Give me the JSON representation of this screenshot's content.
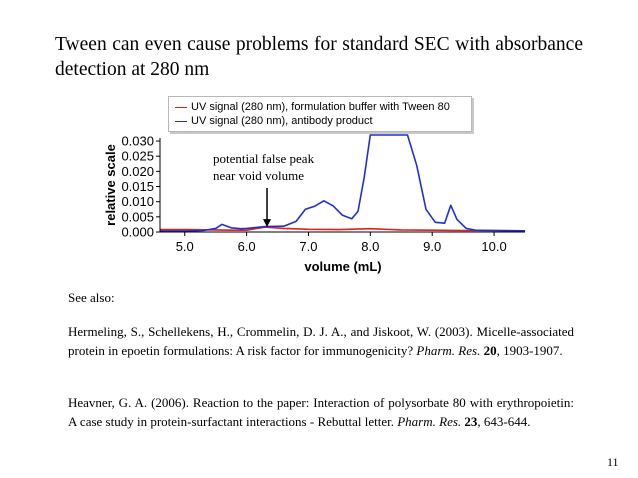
{
  "slide": {
    "title": "Tween can even cause problems for standard SEC with absorbance detection at 280 nm",
    "see_also": "See also:",
    "page_number": "11"
  },
  "references": [
    {
      "before": "Hermeling, S., Schellekens, H., Crommelin, D. J. A., and Jiskoot, W. (2003). Micelle-associated protein in epoetin formulations: A risk factor for immunogenicity? ",
      "journal": "Pharm. Res.",
      "sep": " ",
      "volume": "20",
      "after": ", 1903-1907."
    },
    {
      "before": "Heavner, G. A. (2006). Reaction to the paper: Interaction of polysorbate 80 with erythropoietin: A case study in protein-surfactant interactions - Rebuttal letter. ",
      "journal": "Pharm. Res.",
      "sep": " ",
      "volume": "23",
      "after": ", 643-644."
    }
  ],
  "chart_data": {
    "type": "line",
    "xlabel": "volume (mL)",
    "ylabel": "relative scale",
    "xlim": [
      4.6,
      10.5
    ],
    "ylim": [
      0.0,
      0.031
    ],
    "xticks": [
      5.0,
      6.0,
      7.0,
      8.0,
      9.0,
      10.0
    ],
    "xtick_labels": [
      "5.0",
      "6.0",
      "7.0",
      "8.0",
      "9.0",
      "10.0"
    ],
    "yticks": [
      0.0,
      0.005,
      0.01,
      0.015,
      0.02,
      0.025,
      0.03
    ],
    "ytick_labels": [
      "0.000",
      "0.005",
      "0.010",
      "0.015",
      "0.020",
      "0.025",
      "0.030"
    ],
    "annotation": {
      "lines": [
        "potential false peak",
        "near void volume"
      ],
      "arrow_x": 6.33,
      "arrow_y_tip": 0.0016
    },
    "series": [
      {
        "name": "UV signal (280 nm), formulation buffer with Tween 80",
        "color": "#e02020",
        "x": [
          4.6,
          5.0,
          5.5,
          5.8,
          6.0,
          6.3,
          6.6,
          7.0,
          7.5,
          8.0,
          8.5,
          9.0,
          9.5,
          10.0,
          10.5
        ],
        "y": [
          0.0008,
          0.0008,
          0.0007,
          0.0006,
          0.0006,
          0.0016,
          0.0012,
          0.0009,
          0.0008,
          0.0011,
          0.0007,
          0.0006,
          0.0005,
          0.0005,
          0.0004
        ]
      },
      {
        "name": "UV signal (280 nm), antibody product",
        "color": "#2030d0",
        "x": [
          4.6,
          5.0,
          5.3,
          5.5,
          5.6,
          5.75,
          5.9,
          6.0,
          6.3,
          6.6,
          6.8,
          6.95,
          7.1,
          7.25,
          7.4,
          7.55,
          7.7,
          7.8,
          7.9,
          8.0,
          8.1,
          8.2,
          8.35,
          8.5,
          8.6,
          8.75,
          8.9,
          9.05,
          9.2,
          9.3,
          9.4,
          9.55,
          9.7,
          10.0,
          10.5
        ],
        "y": [
          0.0003,
          0.0003,
          0.0005,
          0.0012,
          0.0025,
          0.0014,
          0.0011,
          0.0012,
          0.0018,
          0.0019,
          0.0035,
          0.0075,
          0.0085,
          0.0103,
          0.0086,
          0.0055,
          0.0044,
          0.0068,
          0.018,
          0.032,
          0.032,
          0.032,
          0.032,
          0.032,
          0.032,
          0.022,
          0.0075,
          0.0032,
          0.0029,
          0.0088,
          0.0042,
          0.0012,
          0.0006,
          0.0005,
          0.0004
        ]
      }
    ]
  }
}
